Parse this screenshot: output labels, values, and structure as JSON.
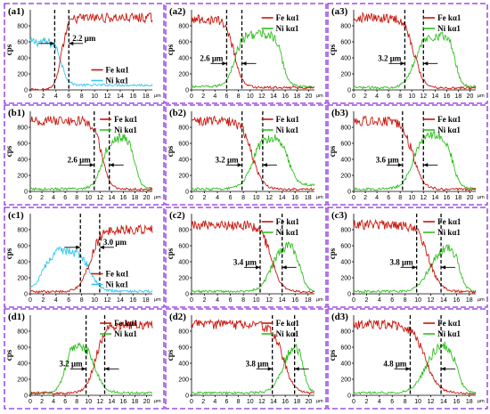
{
  "colors": {
    "fe": "#c8160c",
    "ni": "#2fbf1e",
    "ni_alt": "#33c6f0",
    "border": "#8a2be2"
  },
  "chart_data": [
    {
      "label": "(a1)",
      "type": "line",
      "x_unit": "μm",
      "y_label": "cps",
      "legend": {
        "fe": "Fe kα1",
        "ni": "Ni kα1"
      },
      "legend_position": "bottom-right",
      "ni_color": "#33c6f0",
      "x_ticks": [
        0,
        2,
        4,
        6,
        8,
        10,
        12,
        14,
        16,
        18
      ],
      "y_ticks": [
        0,
        200,
        400,
        600,
        800
      ],
      "xlim": [
        0,
        19
      ],
      "ylim": [
        0,
        1000
      ],
      "dash_x": [
        3.8,
        6.0
      ],
      "width_label": "2.2 μm",
      "fe": {
        "left": 5,
        "right": 900,
        "t": 4.9,
        "w": 0.5,
        "noise": 60
      },
      "ni": {
        "left": 600,
        "right": 60,
        "t": 4.9,
        "w": 0.5,
        "noise": 60
      }
    },
    {
      "label": "(a2)",
      "type": "line",
      "x_unit": "μm",
      "y_label": "cps",
      "legend": {
        "fe": "Fe kα1",
        "ni": "Ni kα1"
      },
      "legend_position": "top-right",
      "ni_color": "#2fbf1e",
      "x_ticks": [
        0,
        2,
        4,
        6,
        8,
        10,
        12,
        14,
        16,
        18,
        20
      ],
      "y_ticks": [
        0,
        200,
        400,
        600,
        800
      ],
      "xlim": [
        0,
        21
      ],
      "ylim": [
        0,
        1000
      ],
      "dash_x": [
        6.0,
        8.6
      ],
      "width_label": "2.6 μm",
      "fe": {
        "left": 880,
        "right": 30,
        "t": 7.3,
        "w": 0.7,
        "noise": 60
      },
      "ni": {
        "left": 40,
        "right": 700,
        "t": 7.3,
        "w": 0.7,
        "noise": 60,
        "fall_t": 15.5,
        "fall_w": 0.6,
        "floor": 40
      }
    },
    {
      "label": "(a3)",
      "type": "line",
      "x_unit": "μm",
      "y_label": "cps",
      "legend": {
        "fe": "Fe kα1",
        "ni": "Ni kα1"
      },
      "legend_position": "top-right",
      "ni_color": "#2fbf1e",
      "x_ticks": [
        0,
        2,
        4,
        6,
        8,
        10,
        12,
        14,
        16,
        18,
        20
      ],
      "y_ticks": [
        0,
        200,
        400,
        600,
        800
      ],
      "xlim": [
        0,
        21
      ],
      "ylim": [
        0,
        1000
      ],
      "dash_x": [
        8.8,
        12.0
      ],
      "width_label": "3.2 μm",
      "fe": {
        "left": 900,
        "right": 25,
        "t": 10.4,
        "w": 0.8,
        "noise": 60
      },
      "ni": {
        "left": 30,
        "right": 680,
        "t": 10.4,
        "w": 0.8,
        "noise": 60,
        "fall_t": 17.5,
        "fall_w": 0.5,
        "floor": 40
      }
    },
    {
      "label": "(b1)",
      "type": "line",
      "x_unit": "μm",
      "y_label": "cps",
      "legend": {
        "fe": "Fe kα1",
        "ni": "Ni kα1"
      },
      "legend_position": "top-right",
      "ni_color": "#2fbf1e",
      "x_ticks": [
        0,
        2,
        4,
        6,
        8,
        10,
        12,
        14,
        16,
        18,
        20
      ],
      "y_ticks": [
        0,
        200,
        400,
        600,
        800
      ],
      "xlim": [
        0,
        21
      ],
      "ylim": [
        0,
        1000
      ],
      "dash_x": [
        11.0,
        13.6
      ],
      "width_label": "2.6 μm",
      "fe": {
        "left": 880,
        "right": 25,
        "t": 12.3,
        "w": 0.7,
        "noise": 60
      },
      "ni": {
        "left": 30,
        "right": 680,
        "t": 12.3,
        "w": 0.7,
        "noise": 60,
        "fall_t": 18.0,
        "fall_w": 0.5,
        "floor": 40
      }
    },
    {
      "label": "(b2)",
      "type": "line",
      "x_unit": "μm",
      "y_label": "cps",
      "legend": {
        "fe": "Fe kα1",
        "ni": "Ni kα1"
      },
      "legend_position": "top-right",
      "ni_color": "#2fbf1e",
      "x_ticks": [
        0,
        2,
        4,
        6,
        8,
        10,
        12,
        14,
        16,
        18
      ],
      "y_ticks": [
        0,
        200,
        400,
        600,
        800
      ],
      "xlim": [
        0,
        19
      ],
      "ylim": [
        0,
        1000
      ],
      "dash_x": [
        7.8,
        11.0
      ],
      "width_label": "3.2 μm",
      "fe": {
        "left": 880,
        "right": 25,
        "t": 9.4,
        "w": 0.8,
        "noise": 60
      },
      "ni": {
        "left": 30,
        "right": 700,
        "t": 9.4,
        "w": 0.8,
        "noise": 60,
        "fall_t": 15.0,
        "fall_w": 0.6,
        "floor": 80
      }
    },
    {
      "label": "(b3)",
      "type": "line",
      "x_unit": "μm",
      "y_label": "cps",
      "legend": {
        "fe": "Fe kα1",
        "ni": "Ni kα1"
      },
      "legend_position": "top-right",
      "ni_color": "#2fbf1e",
      "x_ticks": [
        0,
        2,
        4,
        6,
        8,
        10,
        12,
        14,
        16,
        18,
        20
      ],
      "y_ticks": [
        0,
        200,
        400,
        600,
        800
      ],
      "xlim": [
        0,
        21
      ],
      "ylim": [
        0,
        1000
      ],
      "dash_x": [
        8.4,
        12.0
      ],
      "width_label": "3.6 μm",
      "fe": {
        "left": 880,
        "right": 25,
        "t": 10.2,
        "w": 0.9,
        "noise": 60
      },
      "ni": {
        "left": 30,
        "right": 720,
        "t": 10.2,
        "w": 0.9,
        "noise": 60,
        "fall_t": 17.0,
        "fall_w": 0.6,
        "floor": 40
      }
    },
    {
      "label": "(c1)",
      "type": "line",
      "x_unit": "μm",
      "y_label": "cps",
      "legend": {
        "fe": "Fe kα1",
        "ni": "Ni kα1"
      },
      "legend_position": "bottom-right",
      "ni_color": "#33c6f0",
      "x_ticks": [
        0,
        2,
        4,
        6,
        8,
        10,
        12,
        14,
        16,
        18
      ],
      "y_ticks": [
        0,
        200,
        400,
        600,
        800
      ],
      "xlim": [
        0,
        19
      ],
      "ylim": [
        0,
        1000
      ],
      "dash_x": [
        7.8,
        10.8
      ],
      "width_label": "3.0 μm",
      "fe": {
        "left": 25,
        "right": 800,
        "t": 9.3,
        "w": 0.8,
        "noise": 60
      },
      "ni": {
        "left": 550,
        "right": 30,
        "t": 9.3,
        "w": 0.8,
        "noise": 60,
        "rise_t": 2.0,
        "rise_w": 0.8
      }
    },
    {
      "label": "(c2)",
      "type": "line",
      "x_unit": "μm",
      "y_label": "cps",
      "legend": {
        "fe": "Fe kα1",
        "ni": "Ni kα1"
      },
      "legend_position": "top-right",
      "ni_color": "#2fbf1e",
      "x_ticks": [
        0,
        2,
        4,
        6,
        8,
        10,
        12,
        14,
        16,
        18
      ],
      "y_ticks": [
        0,
        200,
        400,
        600,
        800
      ],
      "xlim": [
        0,
        19
      ],
      "ylim": [
        0,
        1000
      ],
      "dash_x": [
        10.6,
        14.0
      ],
      "width_label": "3.4 μm",
      "fe": {
        "left": 860,
        "right": 25,
        "t": 12.3,
        "w": 0.8,
        "noise": 60
      },
      "ni": {
        "left": 30,
        "right": 620,
        "t": 12.3,
        "w": 0.8,
        "noise": 60,
        "fall_t": 16.8,
        "fall_w": 0.5,
        "floor": 30
      }
    },
    {
      "label": "(c3)",
      "type": "line",
      "x_unit": "μm",
      "y_label": "cps",
      "legend": {
        "fe": "Fe kα1",
        "ni": "Ni kα1"
      },
      "legend_position": "top-right",
      "ni_color": "#2fbf1e",
      "x_ticks": [
        0,
        2,
        4,
        6,
        8,
        10,
        12,
        14,
        16,
        18
      ],
      "y_ticks": [
        0,
        200,
        400,
        600,
        800
      ],
      "xlim": [
        0,
        19
      ],
      "ylim": [
        0,
        1000
      ],
      "dash_x": [
        9.8,
        13.6
      ],
      "width_label": "3.8 μm",
      "fe": {
        "left": 860,
        "right": 25,
        "t": 11.7,
        "w": 0.9,
        "noise": 60
      },
      "ni": {
        "left": 30,
        "right": 600,
        "t": 11.7,
        "w": 0.9,
        "noise": 60,
        "fall_t": 16.5,
        "fall_w": 0.5,
        "floor": 30
      }
    },
    {
      "label": "(d1)",
      "type": "line",
      "x_unit": "μm",
      "y_label": "cps",
      "legend": {
        "fe": "Fe kα1",
        "ni": "Ni kα1"
      },
      "legend_position": "top-right",
      "ni_color": "#2fbf1e",
      "x_ticks": [
        0,
        2,
        4,
        6,
        8,
        10,
        12,
        14,
        16,
        18,
        20
      ],
      "y_ticks": [
        0,
        200,
        400,
        600,
        800
      ],
      "xlim": [
        0,
        21
      ],
      "ylim": [
        0,
        1000
      ],
      "dash_x": [
        9.6,
        12.8
      ],
      "width_label": "3.2 μm",
      "fe": {
        "left": 25,
        "right": 880,
        "t": 11.2,
        "w": 0.8,
        "noise": 60
      },
      "ni": {
        "left": 650,
        "right": 30,
        "t": 11.2,
        "w": 0.8,
        "noise": 60,
        "rise_t": 6.0,
        "rise_w": 0.6
      }
    },
    {
      "label": "(d2)",
      "type": "line",
      "x_unit": "μm",
      "y_label": "cps",
      "legend": {
        "fe": "Fe kα1",
        "ni": "Ni kα1"
      },
      "legend_position": "top-right",
      "ni_color": "#2fbf1e",
      "x_ticks": [
        0,
        2,
        4,
        6,
        8,
        10,
        12,
        14,
        16,
        18,
        20
      ],
      "y_ticks": [
        0,
        200,
        400,
        600,
        800
      ],
      "xlim": [
        0,
        21
      ],
      "ylim": [
        0,
        1000
      ],
      "dash_x": [
        13.8,
        17.6
      ],
      "width_label": "3.8 μm",
      "fe": {
        "left": 880,
        "right": 25,
        "t": 15.7,
        "w": 0.9,
        "noise": 60
      },
      "ni": {
        "left": 30,
        "right": 720,
        "t": 15.7,
        "w": 0.9,
        "noise": 60,
        "fall_t": 19.0,
        "fall_w": 0.5,
        "floor": 30
      }
    },
    {
      "label": "(d3)",
      "type": "line",
      "x_unit": "μm",
      "y_label": "cps",
      "legend": {
        "fe": "Fe kα1",
        "ni": "Ni kα1"
      },
      "legend_position": "top-right",
      "ni_color": "#2fbf1e",
      "x_ticks": [
        0,
        2,
        4,
        6,
        8,
        10,
        12,
        14,
        16,
        18
      ],
      "y_ticks": [
        0,
        200,
        400,
        600,
        800
      ],
      "xlim": [
        0,
        19
      ],
      "ylim": [
        0,
        1000
      ],
      "dash_x": [
        8.8,
        13.6
      ],
      "width_label": "4.8 μm",
      "fe": {
        "left": 880,
        "right": 25,
        "t": 11.2,
        "w": 1.0,
        "noise": 60
      },
      "ni": {
        "left": 30,
        "right": 680,
        "t": 11.2,
        "w": 1.0,
        "noise": 60,
        "fall_t": 16.0,
        "fall_w": 0.6,
        "floor": 30
      }
    }
  ]
}
